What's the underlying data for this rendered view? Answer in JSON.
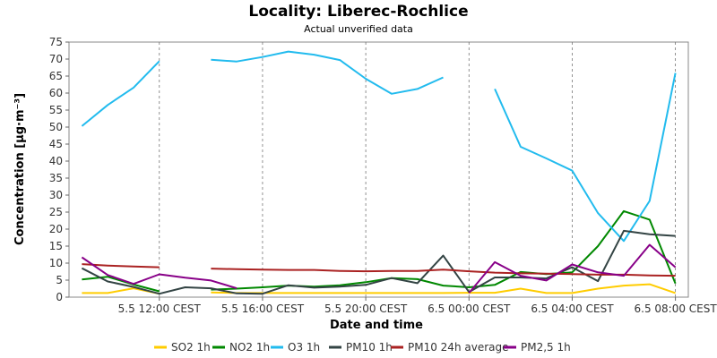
{
  "chart_data": {
    "type": "line",
    "title": "Locality: Liberec-Rochlice",
    "subtitle": "Actual unverified data",
    "xlabel": "Date and time",
    "ylabel": "Concentration [µg·m⁻³]",
    "ylim": [
      0,
      75
    ],
    "yticks": [
      0,
      5,
      10,
      15,
      20,
      25,
      30,
      35,
      40,
      45,
      50,
      55,
      60,
      65,
      70,
      75
    ],
    "x_hours": [
      9,
      10,
      11,
      12,
      13,
      14,
      15,
      16,
      17,
      18,
      19,
      20,
      21,
      22,
      23,
      24,
      25,
      26,
      27,
      28,
      29,
      30,
      31,
      32
    ],
    "xlim_hours": [
      8.5,
      32.5
    ],
    "xticks": [
      {
        "hour": 12,
        "label": "5.5 12:00 CEST"
      },
      {
        "hour": 16,
        "label": "5.5 16:00 CEST"
      },
      {
        "hour": 20,
        "label": "5.5 20:00 CEST"
      },
      {
        "hour": 24,
        "label": "6.5 00:00 CEST"
      },
      {
        "hour": 28,
        "label": "6.5 04:00 CEST"
      },
      {
        "hour": 32,
        "label": "6.5 08:00 CEST"
      }
    ],
    "grid": true,
    "legend_position": "bottom",
    "series": [
      {
        "name": "SO2 1h",
        "color": "#FFCC00",
        "values": [
          1.2,
          1.2,
          2.6,
          1.0,
          null,
          1.4,
          1.2,
          1.2,
          1.2,
          1.2,
          1.2,
          1.2,
          1.2,
          1.2,
          1.2,
          1.3,
          1.3,
          2.5,
          1.2,
          1.2,
          2.5,
          3.4,
          3.8,
          1.2
        ]
      },
      {
        "name": "NO2 1h",
        "color": "#008800",
        "values": [
          5.2,
          6.0,
          3.7,
          1.7,
          null,
          2.2,
          2.5,
          2.9,
          3.4,
          3.1,
          3.5,
          4.4,
          5.6,
          5.3,
          3.4,
          2.9,
          3.6,
          7.4,
          6.8,
          7.3,
          15.0,
          25.3,
          22.8,
          4.0
        ]
      },
      {
        "name": "O3 1h",
        "color": "#22BBEE",
        "values": [
          50.3,
          56.5,
          61.6,
          69.4,
          null,
          69.8,
          69.3,
          70.6,
          72.2,
          71.3,
          69.7,
          64.2,
          59.8,
          61.2,
          64.6,
          null,
          61.2,
          44.2,
          40.8,
          37.2,
          24.7,
          16.5,
          28.3,
          65.9
        ]
      },
      {
        "name": "PM10 1h",
        "color": "#334444",
        "values": [
          8.5,
          4.6,
          3.0,
          1.0,
          2.9,
          2.6,
          1.1,
          1.0,
          3.5,
          2.8,
          3.1,
          3.6,
          5.6,
          4.1,
          12.2,
          1.5,
          5.8,
          5.8,
          5.5,
          8.8,
          4.7,
          19.5,
          18.5,
          18.0
        ]
      },
      {
        "name": "PM10 24h average",
        "color": "#AA2222",
        "values": [
          9.7,
          9.3,
          9.0,
          8.8,
          null,
          8.4,
          8.2,
          8.1,
          8.0,
          8.0,
          7.7,
          7.6,
          7.7,
          7.7,
          8.1,
          7.6,
          7.2,
          7.0,
          6.9,
          6.8,
          6.6,
          6.6,
          6.4,
          6.3
        ]
      },
      {
        "name": "PM2,5 1h",
        "color": "#880088",
        "values": [
          11.7,
          6.5,
          3.9,
          6.7,
          5.7,
          4.9,
          2.6,
          null,
          null,
          null,
          null,
          null,
          null,
          null,
          null,
          1.2,
          10.3,
          6.3,
          4.9,
          9.6,
          7.3,
          6.3,
          15.4,
          8.8
        ]
      }
    ]
  }
}
